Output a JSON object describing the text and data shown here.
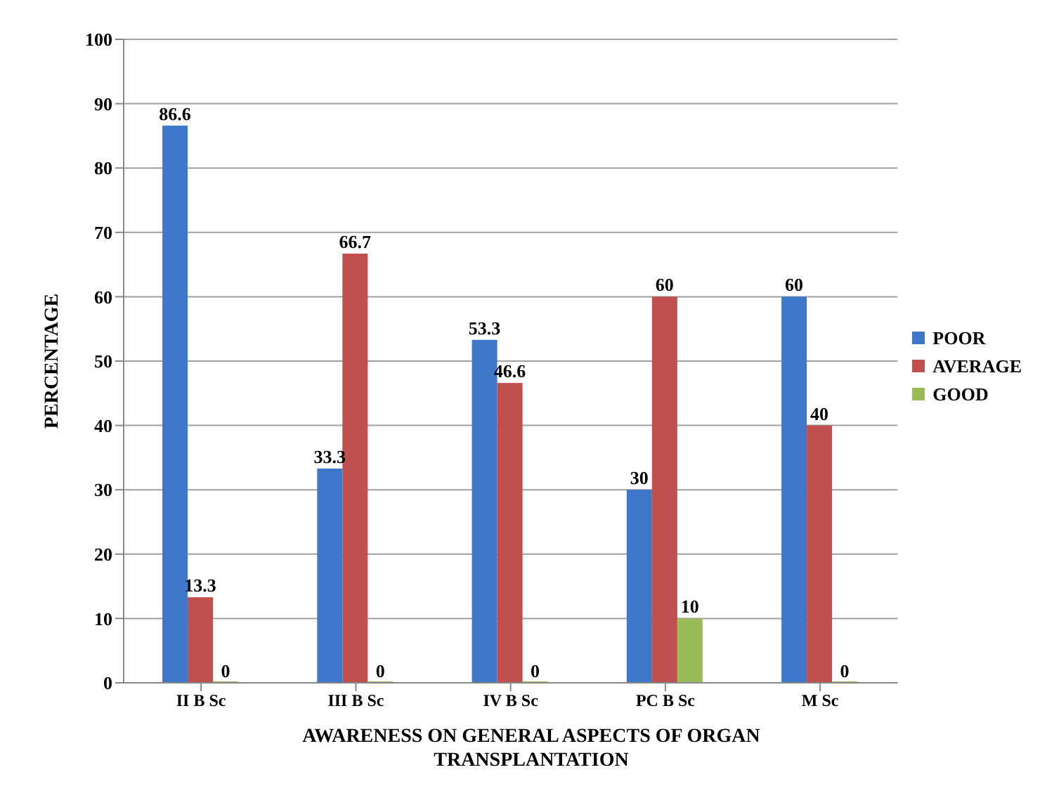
{
  "chart_data": {
    "type": "bar",
    "xlabel": "AWARENESS ON GENERAL ASPECTS OF ORGAN TRANSPLANTATION",
    "ylabel": "PERCENTAGE",
    "categories": [
      "II B Sc",
      "III B Sc",
      "IV B Sc",
      "PC B Sc",
      "M Sc"
    ],
    "series": [
      {
        "name": "POOR",
        "color": "#3f78c8",
        "values": [
          86.6,
          33.3,
          53.3,
          30,
          60
        ]
      },
      {
        "name": "AVERAGE",
        "color": "#c0504d",
        "values": [
          13.3,
          66.7,
          46.6,
          60,
          40
        ]
      },
      {
        "name": "GOOD",
        "color": "#9bbb59",
        "values": [
          0,
          0,
          0,
          10,
          0
        ]
      }
    ],
    "ylim": [
      0,
      100
    ],
    "yticks": [
      0,
      10,
      20,
      30,
      40,
      50,
      60,
      70,
      80,
      90,
      100
    ],
    "grid": "y",
    "legend": "right",
    "data_labels": true
  }
}
